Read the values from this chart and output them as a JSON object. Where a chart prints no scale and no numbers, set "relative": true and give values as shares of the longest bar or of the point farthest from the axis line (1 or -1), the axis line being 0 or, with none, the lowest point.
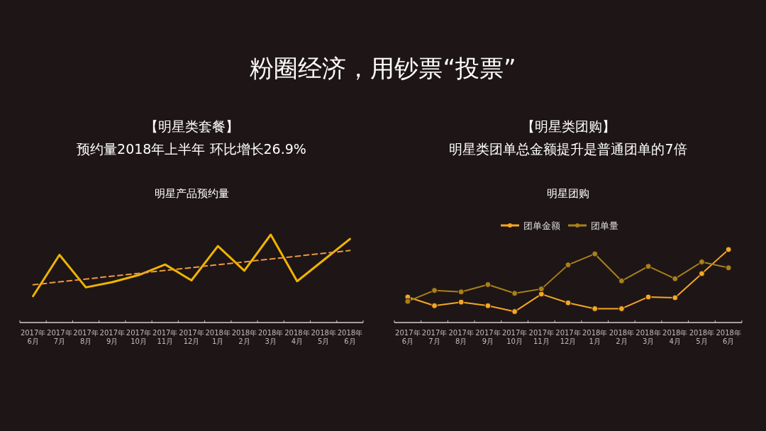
{
  "chart_data": [
    {
      "type": "other",
      "title": "粉圈经济，用钞票“投票”"
    },
    {
      "type": "line",
      "title": "明星产品预约量",
      "annotations": [
        "【明星类套餐】",
        "预约量2018年上半年 环比增长26.9%"
      ],
      "relative": true,
      "categories": [
        "2017年\n6月",
        "2017年\n7月",
        "2017年\n8月",
        "2017年\n9月",
        "2017年\n10月",
        "2017年\n11月",
        "2017年\n12月",
        "2018年\n1月",
        "2018年\n2月",
        "2018年\n3月",
        "2018年\n4月",
        "2018年\n5月",
        "2018年\n6月"
      ],
      "grid": false,
      "legend": false,
      "series": [
        {
          "color": "#f0b400",
          "values": [
            0.3,
            0.77,
            0.4,
            0.46,
            0.54,
            0.66,
            0.48,
            0.87,
            0.59,
            1,
            0.47,
            0.71,
            0.95
          ]
        },
        {
          "color": "#e89a40",
          "line_style": "dashed",
          "x": [
            "2017年\n6月",
            "2018年\n6月"
          ],
          "values": [
            0.43,
            0.82
          ]
        }
      ]
    },
    {
      "type": "line",
      "title": "明星团购",
      "annotations": [
        "【明星类团购】",
        "明星类团单总金额提升是普通团单的7倍"
      ],
      "relative": true,
      "categories": [
        "2017年\n6月",
        "2017年\n7月",
        "2017年\n8月",
        "2017年\n9月",
        "2017年\n10月",
        "2017年\n11月",
        "2017年\n12月",
        "2018年\n1月",
        "2018年\n2月",
        "2018年\n3月",
        "2018年\n4月",
        "2018年\n5月",
        "2018年\n6月"
      ],
      "grid": false,
      "legend": "top",
      "marker": "circle",
      "series": [
        {
          "name": "团单金额",
          "color": "#f5a623",
          "values": [
            0.35,
            0.23,
            0.28,
            0.23,
            0.15,
            0.39,
            0.27,
            0.19,
            0.19,
            0.35,
            0.34,
            0.67,
            1
          ]
        },
        {
          "name": "团单量",
          "color": "#a8801a",
          "values": [
            0.29,
            0.44,
            0.42,
            0.52,
            0.4,
            0.46,
            0.79,
            0.94,
            0.57,
            0.77,
            0.6,
            0.83,
            0.75
          ]
        }
      ]
    }
  ]
}
